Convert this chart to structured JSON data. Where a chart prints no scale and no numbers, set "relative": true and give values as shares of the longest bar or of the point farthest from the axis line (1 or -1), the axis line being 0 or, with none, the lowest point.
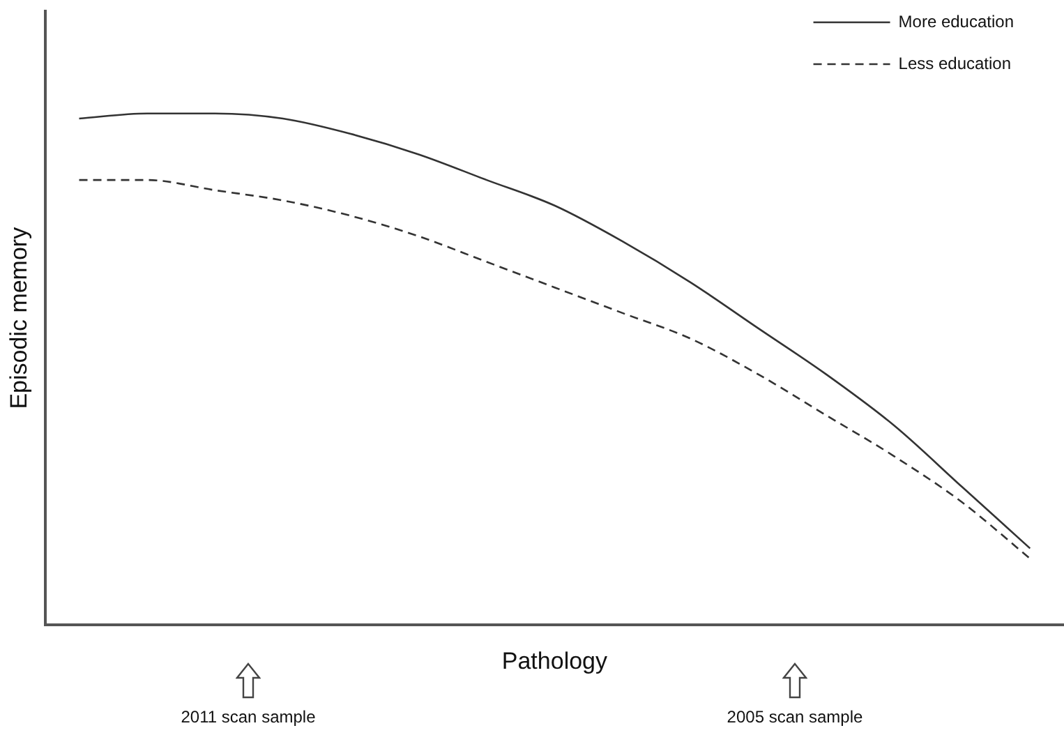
{
  "chart_data": {
    "type": "line",
    "xlabel": "Pathology",
    "ylabel": "Episodic memory",
    "relative": true,
    "legend": "top right",
    "grid": false,
    "marker": "none",
    "categories": [
      null,
      null,
      null,
      null,
      null,
      null,
      null,
      null,
      null,
      null,
      null,
      null,
      null,
      null,
      null
    ],
    "series": [
      {
        "name": "More education",
        "color": "#333333",
        "line_style": "solid",
        "values": [
          0.99,
          1,
          1,
          0.99,
          0.96,
          0.92,
          0.87,
          0.82,
          0.75,
          0.67,
          0.58,
          0.49,
          0.39,
          0.27,
          0.15
        ]
      },
      {
        "name": "Less education",
        "color": "#333333",
        "line_style": "dashed",
        "values": [
          0.87,
          0.87,
          0.85,
          0.83,
          0.8,
          0.76,
          0.71,
          0.66,
          0.61,
          0.56,
          0.49,
          0.41,
          0.33,
          0.24,
          0.13
        ]
      }
    ],
    "annotations": [
      "2011 scan sample",
      "2005 scan sample"
    ]
  }
}
